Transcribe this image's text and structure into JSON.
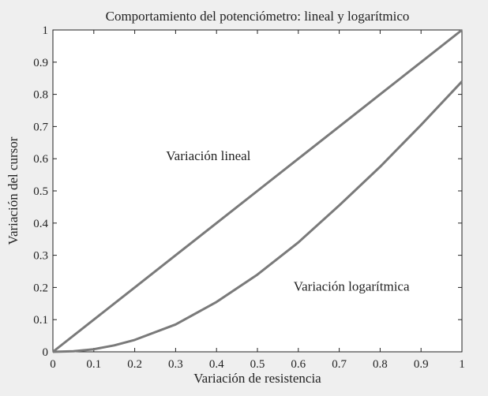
{
  "chart_data": {
    "type": "line",
    "title": "Comportamiento del potenciómetro: lineal y logarítmico",
    "xlabel": "Variación de resistencia",
    "ylabel": "Variación del cursor",
    "xlim": [
      0,
      1
    ],
    "ylim": [
      0,
      1
    ],
    "x_ticks": [
      "0",
      "0.1",
      "0.2",
      "0.3",
      "0.4",
      "0.5",
      "0.6",
      "0.7",
      "0.8",
      "0.9",
      "1"
    ],
    "y_ticks": [
      "0",
      "0.1",
      "0.2",
      "0.3",
      "0.4",
      "0.5",
      "0.6",
      "0.7",
      "0.8",
      "0.9",
      "1"
    ],
    "grid": false,
    "legend": "none",
    "line_color": "#7a7a7a",
    "series": [
      {
        "x": [
          0,
          0.1,
          0.2,
          0.3,
          0.4,
          0.5,
          0.6,
          0.7,
          0.8,
          0.9,
          1
        ],
        "values": [
          0,
          0.1,
          0.2,
          0.3,
          0.4,
          0.5,
          0.6,
          0.7,
          0.8,
          0.9,
          1
        ]
      },
      {
        "x": [
          0,
          0.05,
          0.1,
          0.15,
          0.2,
          0.3,
          0.4,
          0.5,
          0.6,
          0.7,
          0.8,
          0.9,
          1
        ],
        "values": [
          0,
          0.002,
          0.008,
          0.02,
          0.037,
          0.085,
          0.155,
          0.24,
          0.34,
          0.455,
          0.575,
          0.705,
          0.84
        ]
      }
    ],
    "annotations": [
      {
        "text": "Variación lineal",
        "x": 0.38,
        "y": 0.595
      },
      {
        "text": "Variación logarítmica",
        "x": 0.73,
        "y": 0.19
      }
    ]
  }
}
